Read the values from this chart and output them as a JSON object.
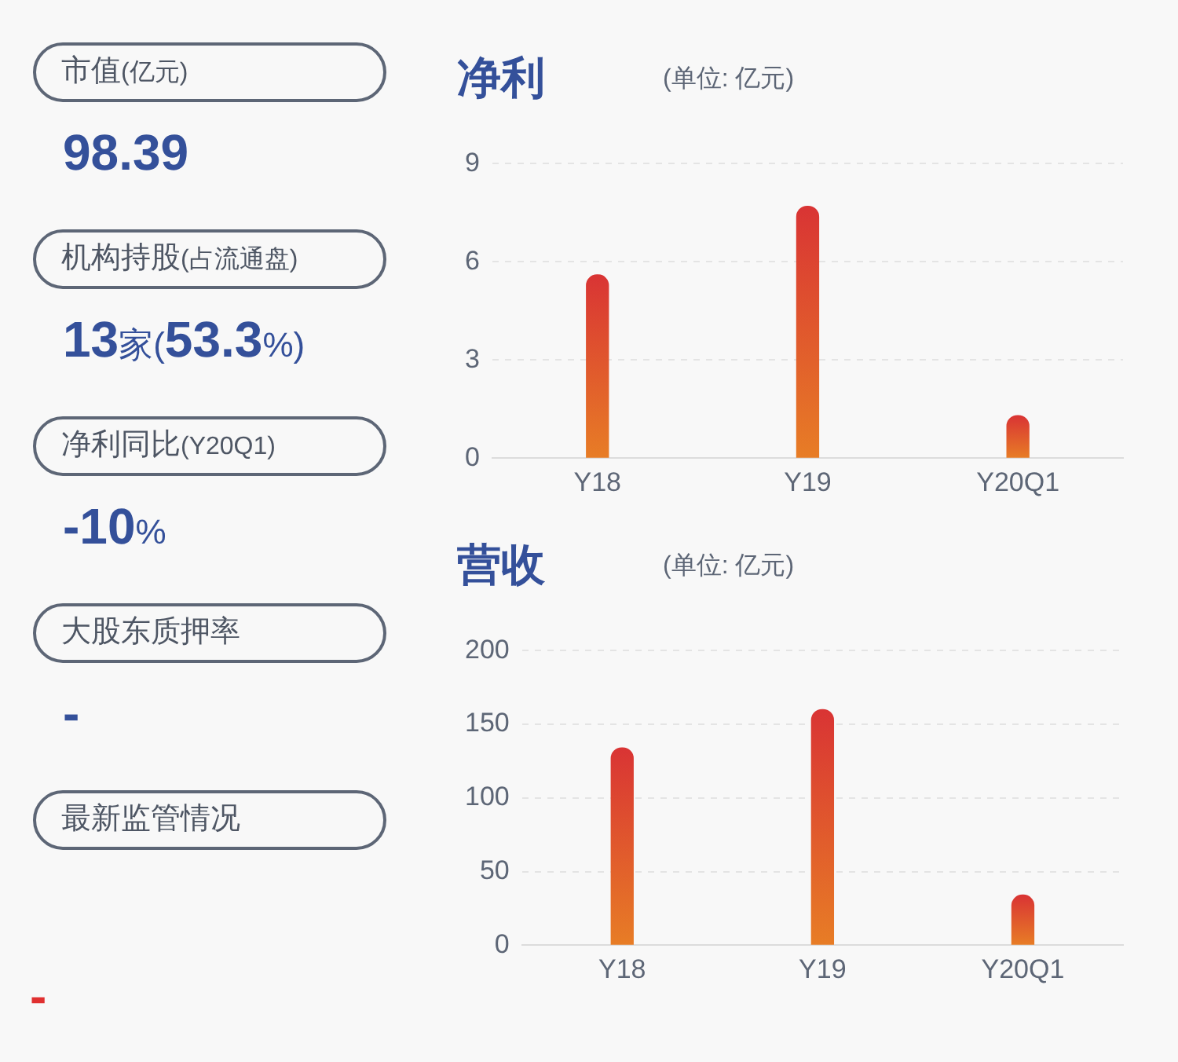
{
  "chart_data": [
    {
      "type": "other",
      "annotations": [
        "市值(亿元)",
        "98.39",
        "机构持股(占流通盘)",
        "13家(53.3%)",
        "净利同比(Y20Q1)",
        "-10%",
        "大股东质押率",
        "-",
        "最新监管情况",
        "-"
      ]
    },
    {
      "type": "bar",
      "title": "净利",
      "subtitle": "(单位: 亿元)",
      "categories": [
        "Y18",
        "Y19",
        "Y20Q1"
      ],
      "values": [
        5.6,
        7.7,
        1.3
      ],
      "color": "#d93434",
      "ylim": [
        0,
        9
      ],
      "yticks": [
        0,
        3,
        6,
        9
      ],
      "grid": "y"
    },
    {
      "type": "bar",
      "title": "营收",
      "subtitle": "(单位: 亿元)",
      "categories": [
        "Y18",
        "Y19",
        "Y20Q1"
      ],
      "values": [
        134,
        160,
        34
      ],
      "color": "#d93434",
      "ylim": [
        0,
        200
      ],
      "yticks": [
        0,
        50,
        100,
        150,
        200
      ],
      "grid": "y"
    }
  ]
}
